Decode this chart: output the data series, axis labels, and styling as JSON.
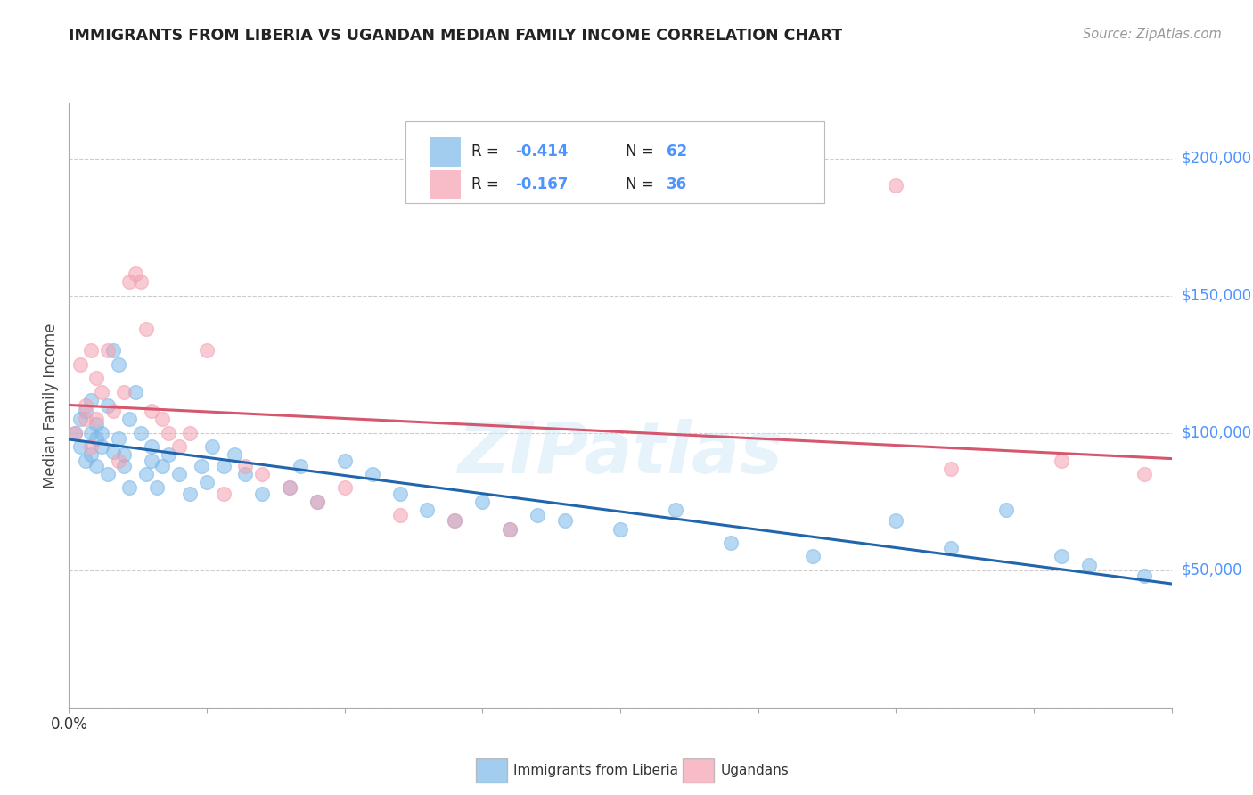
{
  "title": "IMMIGRANTS FROM LIBERIA VS UGANDAN MEDIAN FAMILY INCOME CORRELATION CHART",
  "source": "Source: ZipAtlas.com",
  "ylabel": "Median Family Income",
  "xlim": [
    0.0,
    0.2
  ],
  "ylim": [
    0,
    220000
  ],
  "yticks": [
    0,
    50000,
    100000,
    150000,
    200000
  ],
  "xticks": [
    0.0,
    0.025,
    0.05,
    0.075,
    0.1,
    0.125,
    0.15,
    0.175,
    0.2
  ],
  "xtick_labels_show": {
    "0.0": "0.0%"
  },
  "grid_color": "#cccccc",
  "watermark_text": "ZIPatlas",
  "blue_color": "#7db8e8",
  "pink_color": "#f4a0b0",
  "blue_line_color": "#2166ac",
  "pink_line_color": "#d6566e",
  "right_yaxis_color": "#4d94ff",
  "legend_R_blue": "R = ",
  "legend_R_blue_val": "-0.414",
  "legend_N_blue": "N = ",
  "legend_N_blue_val": "62",
  "legend_R_pink": "R = ",
  "legend_R_pink_val": "-0.167",
  "legend_N_pink": "N = ",
  "legend_N_pink_val": "36",
  "blue_scatter_x": [
    0.001,
    0.002,
    0.002,
    0.003,
    0.003,
    0.004,
    0.004,
    0.004,
    0.005,
    0.005,
    0.005,
    0.006,
    0.006,
    0.007,
    0.007,
    0.008,
    0.008,
    0.009,
    0.009,
    0.01,
    0.01,
    0.011,
    0.011,
    0.012,
    0.013,
    0.014,
    0.015,
    0.015,
    0.016,
    0.017,
    0.018,
    0.02,
    0.022,
    0.024,
    0.025,
    0.026,
    0.028,
    0.03,
    0.032,
    0.035,
    0.04,
    0.042,
    0.045,
    0.05,
    0.055,
    0.06,
    0.065,
    0.07,
    0.075,
    0.08,
    0.085,
    0.09,
    0.1,
    0.11,
    0.12,
    0.135,
    0.15,
    0.16,
    0.17,
    0.18,
    0.185,
    0.195
  ],
  "blue_scatter_y": [
    100000,
    95000,
    105000,
    90000,
    108000,
    100000,
    92000,
    112000,
    98000,
    103000,
    88000,
    95000,
    100000,
    110000,
    85000,
    93000,
    130000,
    125000,
    98000,
    92000,
    88000,
    105000,
    80000,
    115000,
    100000,
    85000,
    90000,
    95000,
    80000,
    88000,
    92000,
    85000,
    78000,
    88000,
    82000,
    95000,
    88000,
    92000,
    85000,
    78000,
    80000,
    88000,
    75000,
    90000,
    85000,
    78000,
    72000,
    68000,
    75000,
    65000,
    70000,
    68000,
    65000,
    72000,
    60000,
    55000,
    68000,
    58000,
    72000,
    55000,
    52000,
    48000
  ],
  "pink_scatter_x": [
    0.001,
    0.002,
    0.003,
    0.003,
    0.004,
    0.004,
    0.005,
    0.005,
    0.006,
    0.007,
    0.008,
    0.009,
    0.01,
    0.011,
    0.012,
    0.013,
    0.014,
    0.015,
    0.017,
    0.018,
    0.02,
    0.022,
    0.025,
    0.028,
    0.032,
    0.035,
    0.04,
    0.045,
    0.05,
    0.06,
    0.07,
    0.08,
    0.15,
    0.16,
    0.18,
    0.195
  ],
  "pink_scatter_y": [
    100000,
    125000,
    110000,
    105000,
    95000,
    130000,
    105000,
    120000,
    115000,
    130000,
    108000,
    90000,
    115000,
    155000,
    158000,
    155000,
    138000,
    108000,
    105000,
    100000,
    95000,
    100000,
    130000,
    78000,
    88000,
    85000,
    80000,
    75000,
    80000,
    70000,
    68000,
    65000,
    190000,
    87000,
    90000,
    85000
  ]
}
